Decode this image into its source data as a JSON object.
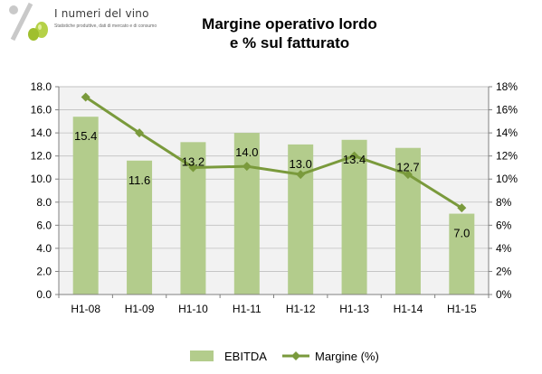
{
  "brand": {
    "name": "I numeri del vino",
    "tagline": "Statistiche produttive, dati di mercato e di consumo"
  },
  "chart_data": {
    "type": "bar",
    "title_lines": [
      "Margine operativo lordo",
      "e % sul fatturato"
    ],
    "categories": [
      "H1-08",
      "H1-09",
      "H1-10",
      "H1-11",
      "H1-12",
      "H1-13",
      "H1-14",
      "H1-15"
    ],
    "series": [
      {
        "name": "EBITDA",
        "type": "bar",
        "axis": "left",
        "color": "#b3cc8c",
        "values": [
          15.4,
          11.6,
          13.2,
          14.0,
          13.0,
          13.4,
          12.7,
          7.0
        ],
        "data_labels": [
          "15.4",
          "11.6",
          "13.2",
          "14.0",
          "13.0",
          "13.4",
          "12.7",
          "7.0"
        ]
      },
      {
        "name": "Margine (%)",
        "type": "line",
        "axis": "right",
        "color": "#7a9a3c",
        "marker": "diamond",
        "values": [
          17.1,
          14.0,
          11.0,
          11.1,
          10.4,
          12.0,
          10.4,
          7.5
        ]
      }
    ],
    "y_left": {
      "min": 0,
      "max": 18,
      "step": 2,
      "tick_labels": [
        "0.0",
        "2.0",
        "4.0",
        "6.0",
        "8.0",
        "10.0",
        "12.0",
        "14.0",
        "16.0",
        "18.0"
      ]
    },
    "y_right": {
      "min": 0,
      "max": 18,
      "step": 2,
      "tick_labels": [
        "0%",
        "2%",
        "4%",
        "6%",
        "8%",
        "10%",
        "12%",
        "14%",
        "16%",
        "18%"
      ]
    },
    "grid": true,
    "plot_background": "#f2f2f2",
    "legend_position": "bottom"
  }
}
